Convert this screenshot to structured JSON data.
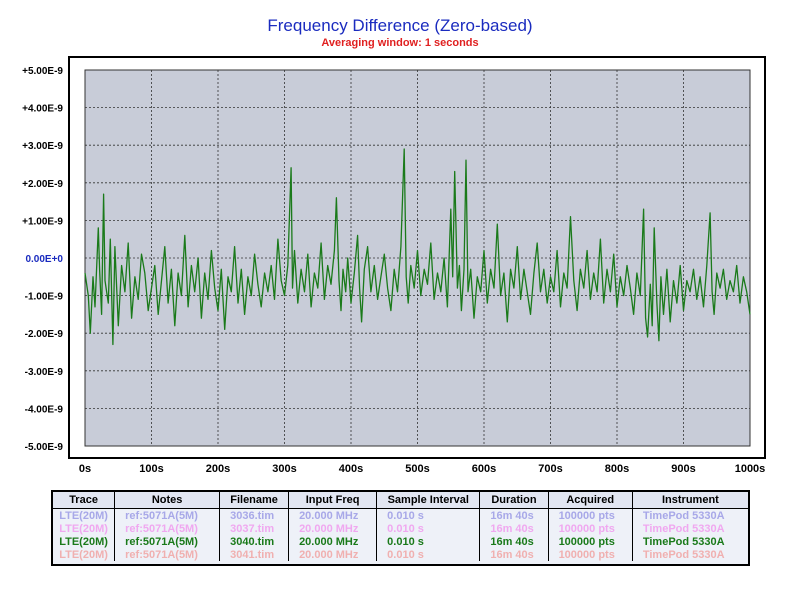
{
  "chart_data": {
    "type": "line",
    "title": "Frequency Difference (Zero-based)",
    "subtitle": "Averaging window: 1 seconds",
    "xlim": [
      0,
      1000
    ],
    "ylim": [
      -5e-09,
      5e-09
    ],
    "x_ticks": [
      "0s",
      "100s",
      "200s",
      "300s",
      "400s",
      "500s",
      "600s",
      "700s",
      "800s",
      "900s",
      "1000s"
    ],
    "y_ticks": [
      "+5.00E-9",
      "+4.00E-9",
      "+3.00E-9",
      "+2.00E-9",
      "+1.00E-9",
      "0.00E+0",
      "-1.00E-9",
      "-2.00E-9",
      "-3.00E-9",
      "-4.00E-9",
      "-5.00E-9"
    ],
    "grid": true,
    "series": [
      {
        "name": "LTE(20M)",
        "color": "#1a7a1a",
        "anchors": [
          [
            0,
            -0.4
          ],
          [
            5,
            -1.0
          ],
          [
            8,
            -2.0
          ],
          [
            12,
            -0.5
          ],
          [
            15,
            -1.3
          ],
          [
            20,
            0.8
          ],
          [
            22,
            -0.3
          ],
          [
            25,
            -1.5
          ],
          [
            28,
            1.7
          ],
          [
            30,
            -0.6
          ],
          [
            35,
            -1.2
          ],
          [
            38,
            0.5
          ],
          [
            42,
            -2.3
          ],
          [
            45,
            0.3
          ],
          [
            50,
            -1.8
          ],
          [
            55,
            -0.2
          ],
          [
            60,
            -0.9
          ],
          [
            65,
            0.4
          ],
          [
            70,
            -1.6
          ],
          [
            75,
            -0.5
          ],
          [
            80,
            -1.1
          ],
          [
            85,
            0.1
          ],
          [
            90,
            -0.4
          ],
          [
            95,
            -1.4
          ],
          [
            100,
            -0.8
          ],
          [
            105,
            -0.2
          ],
          [
            110,
            -1.5
          ],
          [
            115,
            -0.6
          ],
          [
            120,
            0.3
          ],
          [
            125,
            -1.2
          ],
          [
            130,
            -0.3
          ],
          [
            135,
            -1.8
          ],
          [
            140,
            -0.4
          ],
          [
            145,
            -1.0
          ],
          [
            150,
            0.6
          ],
          [
            155,
            -1.3
          ],
          [
            160,
            -0.2
          ],
          [
            165,
            -0.9
          ],
          [
            170,
            0.0
          ],
          [
            175,
            -1.6
          ],
          [
            180,
            -0.4
          ],
          [
            185,
            -1.1
          ],
          [
            190,
            0.2
          ],
          [
            195,
            -0.8
          ],
          [
            200,
            -1.4
          ],
          [
            205,
            -0.3
          ],
          [
            210,
            -1.9
          ],
          [
            215,
            -0.5
          ],
          [
            220,
            -0.9
          ],
          [
            225,
            0.3
          ],
          [
            230,
            -1.2
          ],
          [
            235,
            -0.3
          ],
          [
            240,
            -1.5
          ],
          [
            245,
            -0.5
          ],
          [
            250,
            -1.0
          ],
          [
            255,
            0.1
          ],
          [
            260,
            -0.7
          ],
          [
            265,
            -1.3
          ],
          [
            270,
            -0.4
          ],
          [
            275,
            -0.9
          ],
          [
            280,
            -0.2
          ],
          [
            285,
            -1.1
          ],
          [
            290,
            0.5
          ],
          [
            295,
            -0.6
          ],
          [
            300,
            -1.0
          ],
          [
            305,
            -0.2
          ],
          [
            310,
            2.4
          ],
          [
            312,
            -0.8
          ],
          [
            315,
            0.2
          ],
          [
            320,
            -1.2
          ],
          [
            325,
            -0.3
          ],
          [
            330,
            -0.9
          ],
          [
            335,
            0.1
          ],
          [
            340,
            -1.3
          ],
          [
            345,
            -0.4
          ],
          [
            350,
            -0.8
          ],
          [
            355,
            0.4
          ],
          [
            360,
            -1.1
          ],
          [
            365,
            -0.2
          ],
          [
            370,
            -0.7
          ],
          [
            375,
            0.2
          ],
          [
            378,
            1.6
          ],
          [
            382,
            -0.6
          ],
          [
            385,
            -1.4
          ],
          [
            388,
            -0.3
          ],
          [
            392,
            -0.9
          ],
          [
            395,
            0.0
          ],
          [
            400,
            -1.2
          ],
          [
            405,
            -0.4
          ],
          [
            410,
            0.6
          ],
          [
            413,
            -0.8
          ],
          [
            416,
            -1.7
          ],
          [
            420,
            -0.3
          ],
          [
            425,
            0.3
          ],
          [
            430,
            -0.9
          ],
          [
            435,
            -0.2
          ],
          [
            440,
            -1.1
          ],
          [
            445,
            -0.5
          ],
          [
            450,
            0.1
          ],
          [
            455,
            -0.8
          ],
          [
            460,
            -1.4
          ],
          [
            465,
            -0.3
          ],
          [
            470,
            -0.9
          ],
          [
            475,
            0.3
          ],
          [
            480,
            2.9
          ],
          [
            483,
            -0.5
          ],
          [
            486,
            -1.2
          ],
          [
            490,
            -0.2
          ],
          [
            495,
            -0.8
          ],
          [
            500,
            0.2
          ],
          [
            505,
            -1.0
          ],
          [
            510,
            -0.3
          ],
          [
            515,
            -0.7
          ],
          [
            520,
            0.4
          ],
          [
            525,
            -1.1
          ],
          [
            530,
            -0.4
          ],
          [
            535,
            -0.9
          ],
          [
            540,
            0.0
          ],
          [
            545,
            -1.3
          ],
          [
            550,
            1.3
          ],
          [
            553,
            -0.5
          ],
          [
            556,
            2.3
          ],
          [
            560,
            -0.8
          ],
          [
            563,
            -0.2
          ],
          [
            566,
            -1.4
          ],
          [
            570,
            -0.3
          ],
          [
            573,
            2.6
          ],
          [
            576,
            -0.9
          ],
          [
            580,
            -0.3
          ],
          [
            585,
            -1.6
          ],
          [
            590,
            -0.5
          ],
          [
            595,
            -0.9
          ],
          [
            600,
            0.2
          ],
          [
            605,
            -1.2
          ],
          [
            610,
            -0.3
          ],
          [
            615,
            -0.8
          ],
          [
            620,
            0.9
          ],
          [
            625,
            -1.0
          ],
          [
            630,
            -0.4
          ],
          [
            635,
            -1.7
          ],
          [
            640,
            -0.3
          ],
          [
            645,
            -0.8
          ],
          [
            650,
            0.3
          ],
          [
            655,
            -1.1
          ],
          [
            660,
            -0.3
          ],
          [
            665,
            -0.9
          ],
          [
            670,
            -1.5
          ],
          [
            675,
            -0.4
          ],
          [
            680,
            0.4
          ],
          [
            685,
            -0.9
          ],
          [
            690,
            -0.3
          ],
          [
            695,
            -1.2
          ],
          [
            700,
            -0.5
          ],
          [
            705,
            -0.9
          ],
          [
            710,
            0.2
          ],
          [
            715,
            -1.3
          ],
          [
            720,
            -0.4
          ],
          [
            725,
            -0.8
          ],
          [
            730,
            1.1
          ],
          [
            735,
            -0.6
          ],
          [
            740,
            -1.4
          ],
          [
            745,
            -0.3
          ],
          [
            750,
            -0.8
          ],
          [
            755,
            0.2
          ],
          [
            760,
            -1.1
          ],
          [
            765,
            -0.4
          ],
          [
            770,
            -0.9
          ],
          [
            775,
            0.5
          ],
          [
            780,
            -1.2
          ],
          [
            785,
            -0.3
          ],
          [
            790,
            -0.9
          ],
          [
            795,
            0.1
          ],
          [
            800,
            -1.3
          ],
          [
            805,
            -0.5
          ],
          [
            810,
            -1.0
          ],
          [
            815,
            -0.2
          ],
          [
            820,
            -0.8
          ],
          [
            825,
            -1.5
          ],
          [
            830,
            -0.4
          ],
          [
            835,
            -1.0
          ],
          [
            840,
            1.3
          ],
          [
            843,
            -1.6
          ],
          [
            846,
            -2.1
          ],
          [
            850,
            -0.7
          ],
          [
            853,
            -1.8
          ],
          [
            856,
            0.8
          ],
          [
            860,
            -1.2
          ],
          [
            863,
            -2.2
          ],
          [
            866,
            -0.5
          ],
          [
            870,
            -1.5
          ],
          [
            875,
            -0.3
          ],
          [
            880,
            -1.7
          ],
          [
            885,
            -0.6
          ],
          [
            890,
            -1.2
          ],
          [
            895,
            -0.2
          ],
          [
            900,
            -1.4
          ],
          [
            905,
            -0.6
          ],
          [
            910,
            -0.9
          ],
          [
            915,
            -0.3
          ],
          [
            920,
            -1.1
          ],
          [
            925,
            -0.5
          ],
          [
            930,
            -1.3
          ],
          [
            935,
            -0.2
          ],
          [
            940,
            1.2
          ],
          [
            943,
            -0.9
          ],
          [
            946,
            -1.5
          ],
          [
            950,
            -0.4
          ],
          [
            955,
            -0.8
          ],
          [
            960,
            -0.3
          ],
          [
            965,
            -1.1
          ],
          [
            970,
            -0.6
          ],
          [
            975,
            -0.9
          ],
          [
            980,
            -0.2
          ],
          [
            985,
            -1.2
          ],
          [
            990,
            -0.5
          ],
          [
            995,
            -0.9
          ],
          [
            1000,
            -1.5
          ]
        ]
      }
    ]
  },
  "legend_table": {
    "headers": [
      "Trace",
      "Notes",
      "Filename",
      "Input Freq",
      "Sample Interval",
      "Duration",
      "Acquired",
      "Instrument"
    ],
    "rows": [
      {
        "color": "#a8a8e8",
        "cells": [
          "LTE(20M)",
          "ref:5071A(5M)",
          "3036.tim",
          "20.000 MHz",
          "0.010 s",
          "16m 40s",
          "100000 pts",
          "TimePod 5330A"
        ]
      },
      {
        "color": "#f0a8f0",
        "cells": [
          "LTE(20M)",
          "ref:5071A(5M)",
          "3037.tim",
          "20.000 MHz",
          "0.010 s",
          "16m 40s",
          "100000 pts",
          "TimePod 5330A"
        ]
      },
      {
        "color": "#1a7a1a",
        "cells": [
          "LTE(20M)",
          "ref:5071A(5M)",
          "3040.tim",
          "20.000 MHz",
          "0.010 s",
          "16m 40s",
          "100000 pts",
          "TimePod 5330A"
        ]
      },
      {
        "color": "#f0b0b0",
        "cells": [
          "LTE(20M)",
          "ref:5071A(5M)",
          "3041.tim",
          "20.000 MHz",
          "0.010 s",
          "16m 40s",
          "100000 pts",
          "TimePod 5330A"
        ]
      }
    ]
  }
}
